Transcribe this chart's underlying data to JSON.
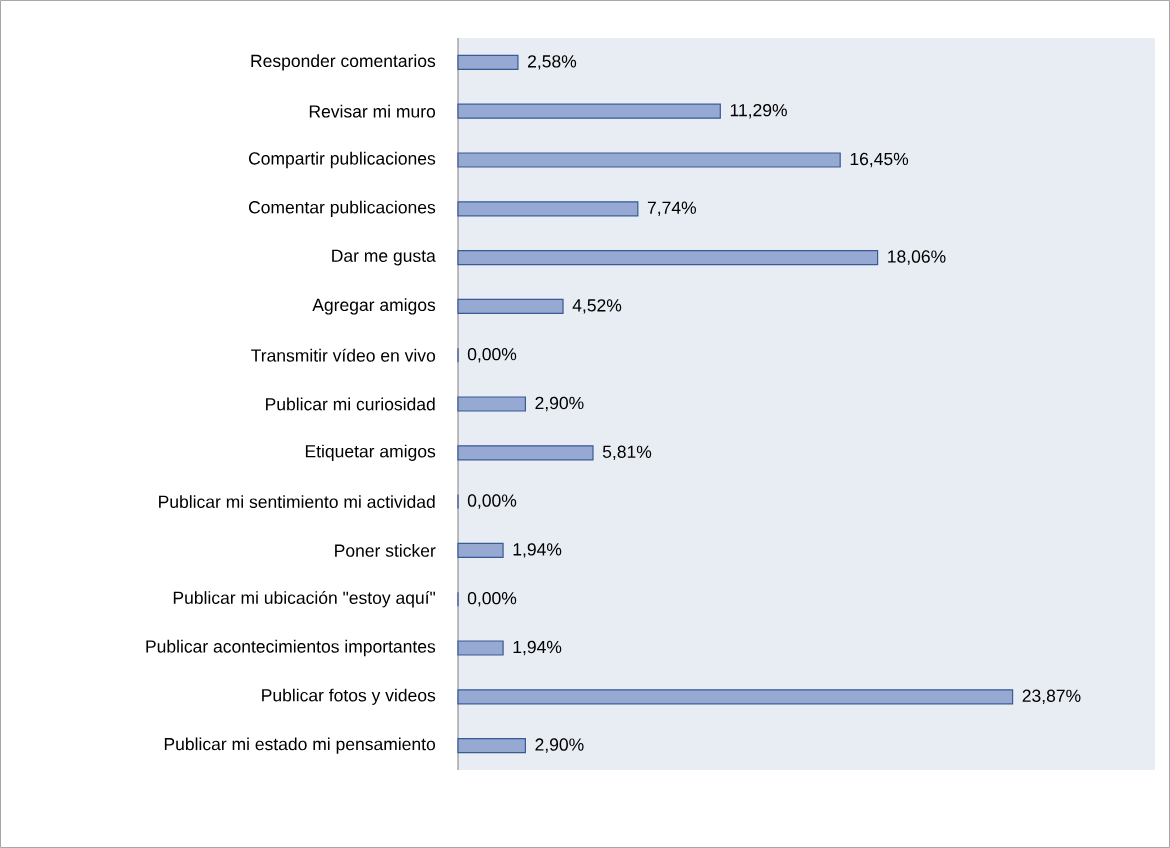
{
  "chart_data": {
    "type": "bar",
    "orientation": "horizontal",
    "categories": [
      "Responder comentarios",
      "Revisar mi muro",
      "Compartir publicaciones",
      "Comentar publicaciones",
      "Dar me gusta",
      "Agregar amigos",
      "Transmitir vídeo en vivo",
      "Publicar mi curiosidad",
      "Etiquetar amigos",
      "Publicar mi sentimiento mi actividad",
      "Poner sticker",
      "Publicar mi ubicación \"estoy aquí\"",
      "Publicar acontecimientos importantes",
      "Publicar fotos y videos",
      "Publicar mi estado mi pensamiento"
    ],
    "values": [
      2.58,
      11.29,
      16.45,
      7.74,
      18.06,
      4.52,
      0,
      2.9,
      5.81,
      0,
      1.94,
      0,
      1.94,
      23.87,
      2.9
    ],
    "value_labels": [
      "2,58%",
      "11,29%",
      "16,45%",
      "7,74%",
      "18,06%",
      "4,52%",
      "0,00%",
      "2,90%",
      "5,81%",
      "0,00%",
      "1,94%",
      "0,00%",
      "1,94%",
      "23,87%",
      "2,90%"
    ],
    "color": "#95a9d2",
    "xlim": [
      0,
      30
    ]
  }
}
